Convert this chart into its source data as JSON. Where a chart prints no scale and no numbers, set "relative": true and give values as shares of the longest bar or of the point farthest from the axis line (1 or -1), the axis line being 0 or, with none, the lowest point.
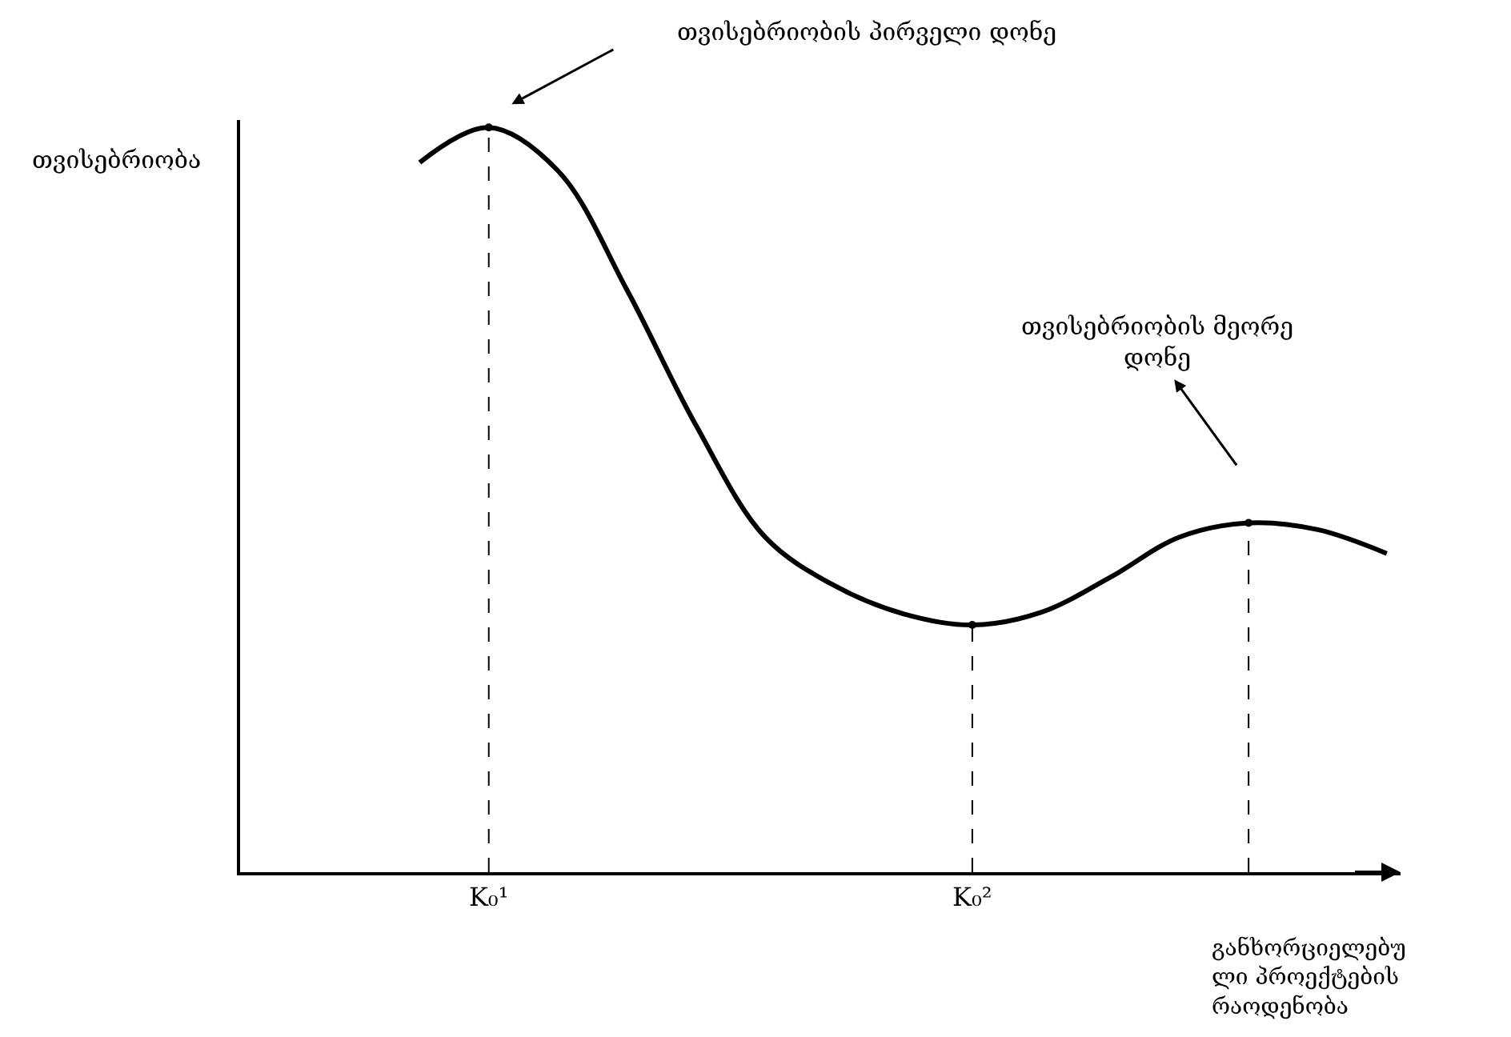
{
  "chart_data": {
    "type": "line",
    "relative": true,
    "categories": [
      null,
      "K₀¹",
      null,
      null,
      null,
      null,
      null,
      null,
      "K₀²",
      null,
      null,
      null,
      null,
      null,
      null
    ],
    "xlabel": "განხორციელებუ\nლი პროექტების\nრაოდენობა",
    "annotations": [
      "თვისებრიობის პირველი დონე",
      "თვისებრიობის მეორე\nდონე",
      "თვისებრიობა"
    ],
    "series": [
      {
        "color": "#000000",
        "values": [
          0.953,
          1,
          0.942,
          0.782,
          0.6,
          0.45,
          0.385,
          0.347,
          0.332,
          0.349,
          0.396,
          0.45,
          0.469,
          0.46,
          0.428
        ]
      },
      {
        "type": "lollipop",
        "color": "#000000",
        "line_style": "dashed",
        "values": [
          null,
          1,
          null,
          null,
          null,
          null,
          null,
          null,
          0.332,
          null,
          null,
          null,
          0.469,
          null,
          null
        ]
      }
    ]
  }
}
